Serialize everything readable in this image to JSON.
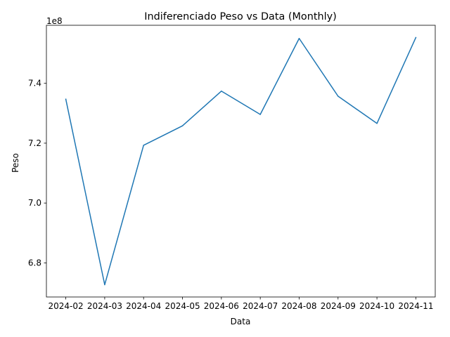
{
  "chart_data": {
    "type": "line",
    "title": "Indiferenciado Peso vs Data (Monthly)",
    "xlabel": "Data",
    "ylabel": "Peso",
    "y_offset_label": "1e8",
    "x": [
      "2024-02",
      "2024-03",
      "2024-04",
      "2024-05",
      "2024-06",
      "2024-07",
      "2024-08",
      "2024-09",
      "2024-10",
      "2024-11"
    ],
    "series": [
      {
        "values": [
          734700000,
          672700000,
          719300000,
          725800000,
          737400000,
          729600000,
          755000000,
          735700000,
          726600000,
          755300000
        ],
        "color": "#1f77b4"
      }
    ],
    "x_ticks": [
      "2024-02",
      "2024-03",
      "2024-04",
      "2024-05",
      "2024-06",
      "2024-07",
      "2024-08",
      "2024-09",
      "2024-10",
      "2024-11"
    ],
    "y_ticks": [
      {
        "value": 680000000,
        "label": "6.8"
      },
      {
        "value": 700000000,
        "label": "7.0"
      },
      {
        "value": 720000000,
        "label": "7.2"
      },
      {
        "value": 740000000,
        "label": "7.4"
      }
    ],
    "ylim": [
      668600000,
      759400000
    ],
    "grid": false,
    "legend": "none"
  }
}
